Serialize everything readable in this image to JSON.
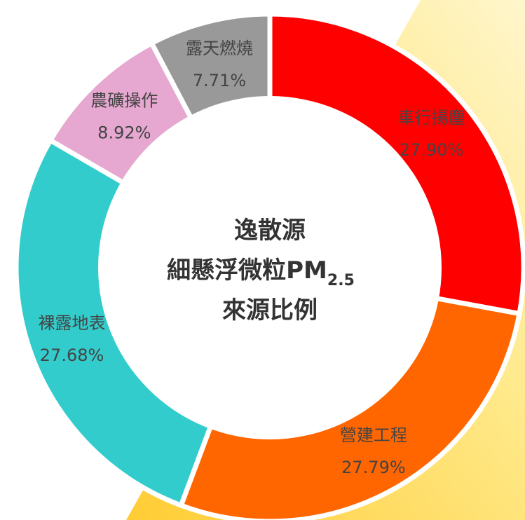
{
  "chart_data": {
    "type": "donut",
    "title": [
      "逸散源",
      "細懸浮微粒PM",
      "來源比例"
    ],
    "title_subscript": "2.5",
    "categories": [
      "車行揚塵",
      "營建工程",
      "裸露地表",
      "農礦操作",
      "露天燃燒"
    ],
    "values": [
      27.9,
      27.79,
      27.68,
      8.92,
      7.71
    ],
    "value_labels": [
      "27.90%",
      "27.79%",
      "27.68%",
      "8.92%",
      "7.71%"
    ],
    "colors": [
      "#ff0000",
      "#ff6600",
      "#33cccc",
      "#e6a8d0",
      "#999999"
    ]
  }
}
